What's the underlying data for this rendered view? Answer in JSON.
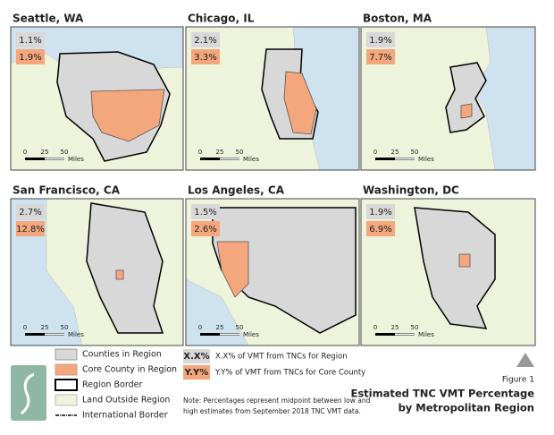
{
  "panels": [
    {
      "title": "Seattle, WA",
      "region_pct": "1.1%",
      "core_pct": "1.9%",
      "scale": [
        "0",
        "25",
        "50",
        "Miles"
      ]
    },
    {
      "title": "Chicago, IL",
      "region_pct": "2.1%",
      "core_pct": "3.3%",
      "scale": [
        "0",
        "25",
        "50",
        "Miles"
      ]
    },
    {
      "title": "Boston, MA",
      "region_pct": "1.9%",
      "core_pct": "7.7%",
      "scale": [
        "0",
        "25",
        "50",
        "Miles"
      ]
    },
    {
      "title": "San Francisco, CA",
      "region_pct": "2.7%",
      "core_pct": "12.8%",
      "scale": [
        "0",
        "25",
        "50",
        "Miles"
      ]
    },
    {
      "title": "Los Angeles, CA",
      "region_pct": "1.5%",
      "core_pct": "2.6%",
      "scale": [
        "0",
        "25",
        "50",
        "Miles"
      ]
    },
    {
      "title": "Washington, DC",
      "region_pct": "1.9%",
      "core_pct": "6.9%",
      "scale": [
        "0",
        "25",
        "50",
        "Miles"
      ]
    }
  ],
  "legend": [
    "Counties in Region",
    "Core County in Region",
    "Region Border",
    "Land Outside Region",
    "International Border"
  ],
  "key": [
    {
      "box": "X.X%",
      "text": "X.X% of VMT from TNCs for Region"
    },
    {
      "box": "Y.Y%",
      "text": "Y.Y% of VMT from TNCs for Core County"
    }
  ],
  "note": [
    "Note: Percentages represent midpoint between low and",
    "high estimates from September 2018 TNC VMT data."
  ],
  "figure": {
    "label": "Figure 1",
    "title": [
      "Estimated TNC VMT Percentage",
      "by Metropolitan Region"
    ]
  }
}
